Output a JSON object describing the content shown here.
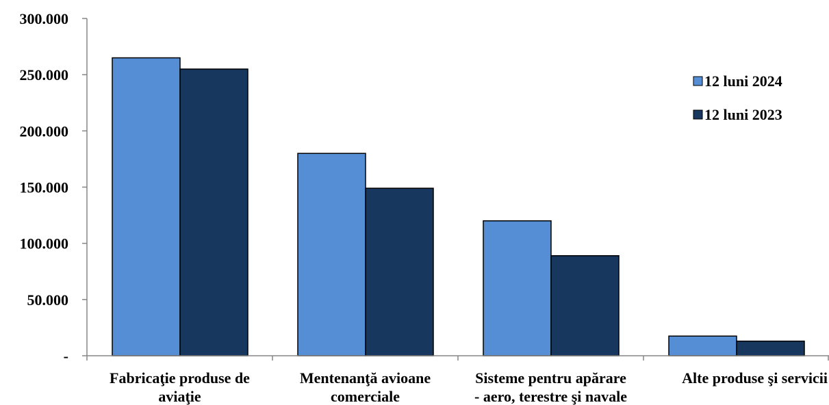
{
  "chart_data": {
    "type": "bar",
    "title": "",
    "xlabel": "",
    "ylabel": "",
    "ylim": [
      0,
      300000
    ],
    "grid": false,
    "legend_position": "right",
    "y_tick_labels": [
      "-",
      "50.000",
      "100.000",
      "150.000",
      "200.000",
      "250.000",
      "300.000"
    ],
    "y_tick_values": [
      0,
      50000,
      100000,
      150000,
      200000,
      250000,
      300000
    ],
    "categories": [
      [
        "Fabricaţie produse de",
        "aviaţie"
      ],
      [
        "Mentenanţă avioane",
        "comerciale"
      ],
      [
        "Sisteme pentru apărare",
        "- aero, terestre şi navale"
      ],
      [
        "Alte produse şi servicii"
      ]
    ],
    "series": [
      {
        "name": "12 luni 2024",
        "color": "#558ed5",
        "values": [
          265000,
          180000,
          120000,
          17500
        ]
      },
      {
        "name": "12 luni 2023",
        "color": "#17375e",
        "values": [
          255000,
          149000,
          89000,
          13000
        ]
      }
    ]
  }
}
